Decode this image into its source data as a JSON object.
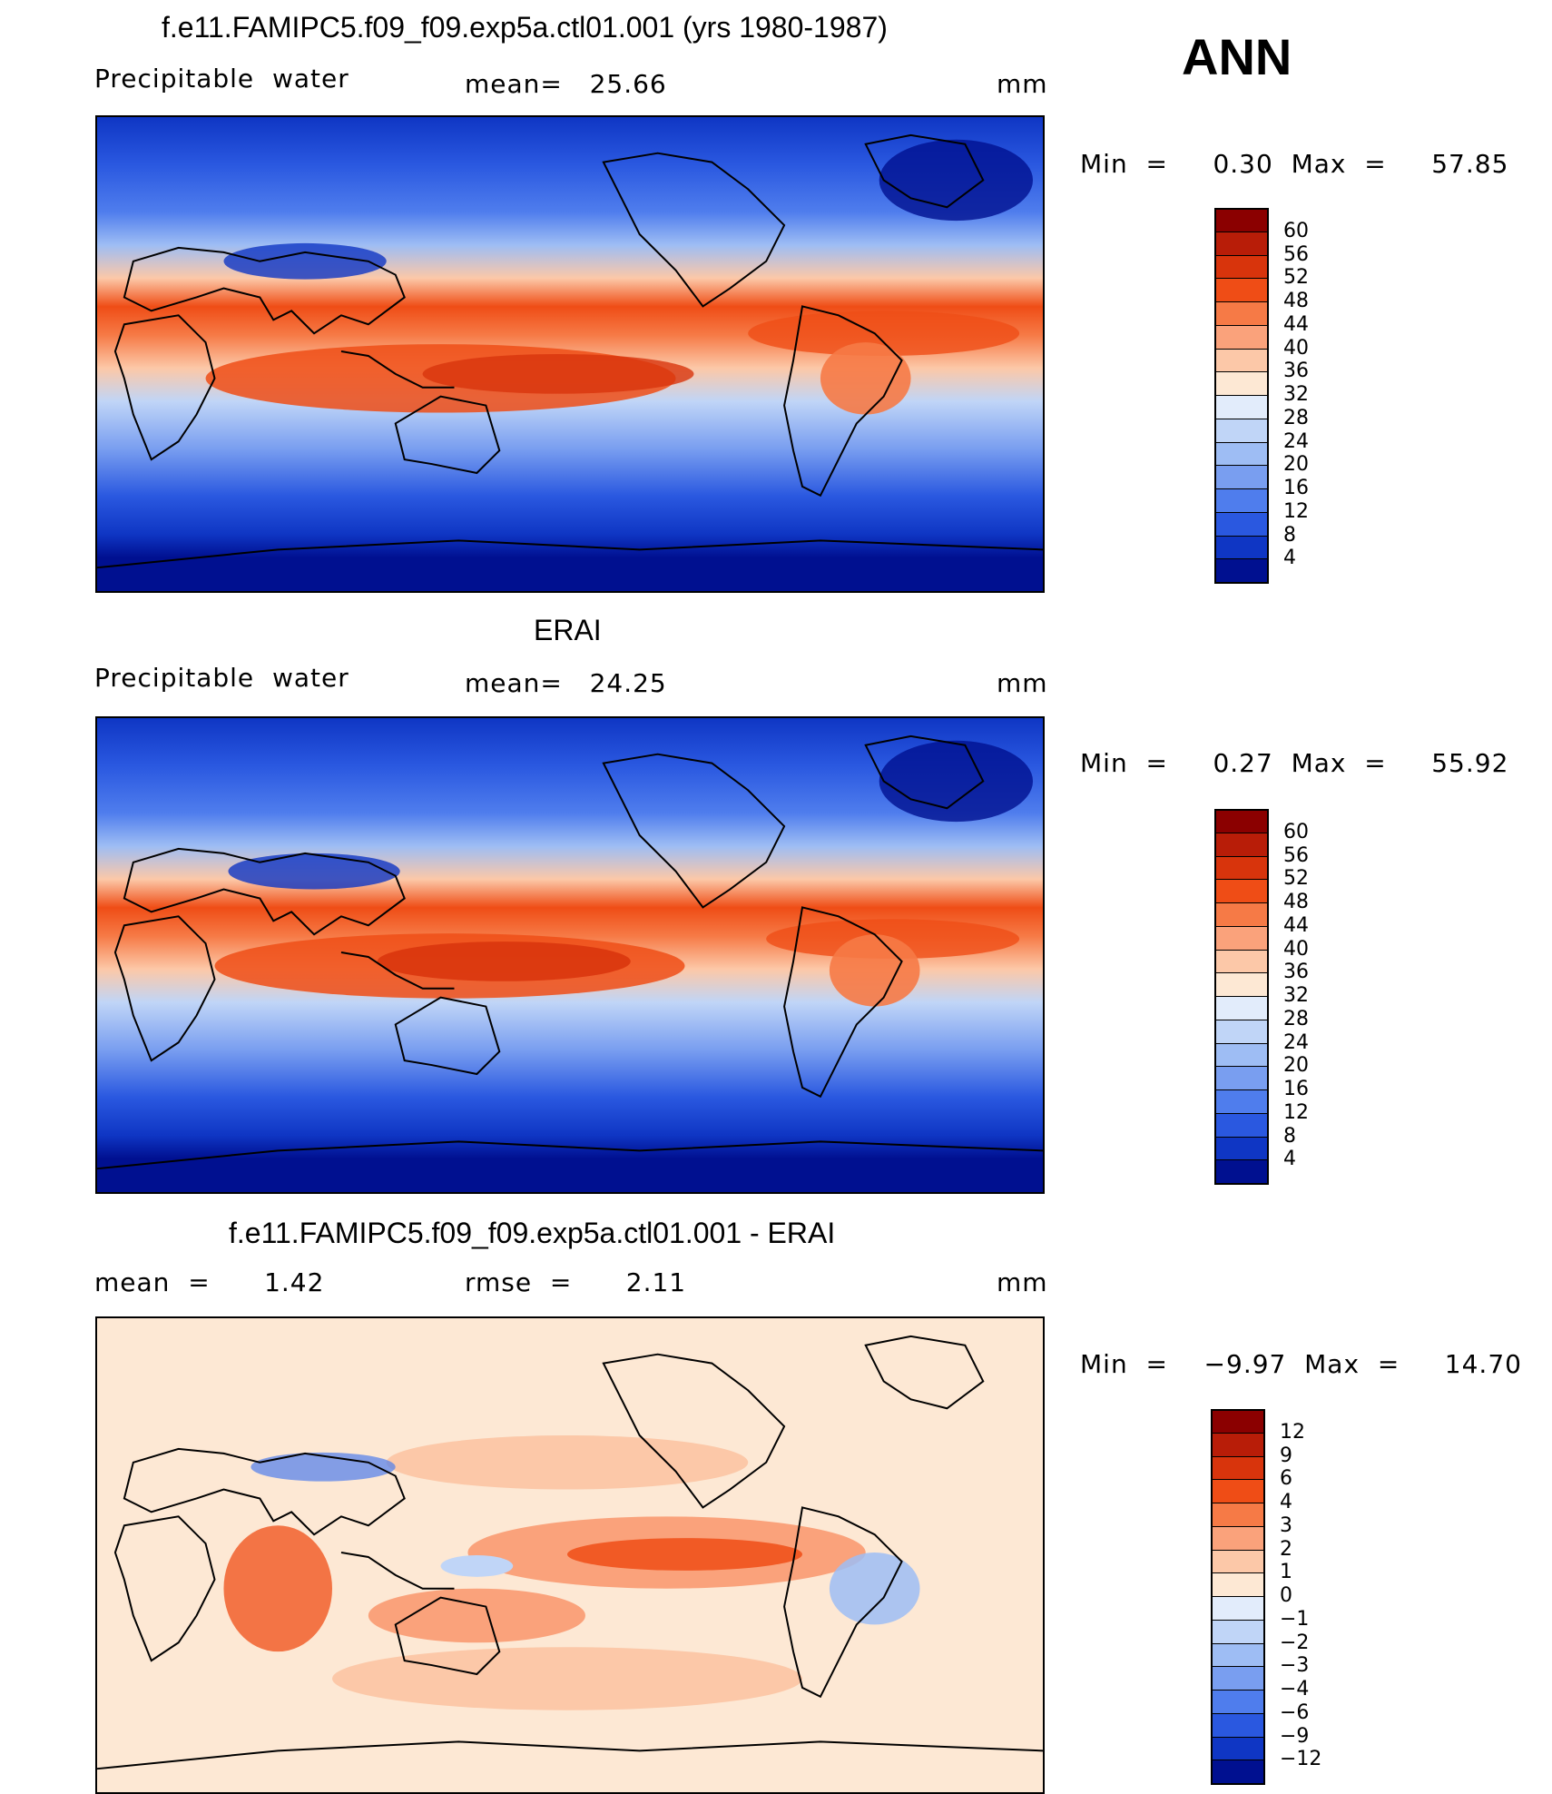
{
  "season": "ANN",
  "panels": [
    {
      "id": "model",
      "title": "f.e11.FAMIPC5.f09_f09.exp5a.ctl01.001 (yrs 1980-1987)",
      "left_label": "Precipitable  water",
      "mid_label": "mean=   25.66",
      "units": "mm",
      "minmax": "Min  =     0.30  Max  =     57.85",
      "scale": "abs"
    },
    {
      "id": "obs",
      "title": "ERAI",
      "left_label": "Precipitable  water",
      "mid_label": "mean=   24.25",
      "units": "mm",
      "minmax": "Min  =     0.27  Max  =     55.92",
      "scale": "abs"
    },
    {
      "id": "diff",
      "title": "f.e11.FAMIPC5.f09_f09.exp5a.ctl01.001 - ERAI",
      "left_label": "mean  =      1.42",
      "mid_label": "rmse  =      2.11",
      "units": "mm",
      "minmax": "Min  =    −9.97  Max  =     14.70",
      "scale": "diff"
    }
  ],
  "colorbars": {
    "abs": {
      "labels": [
        "60",
        "56",
        "52",
        "48",
        "44",
        "40",
        "36",
        "32",
        "28",
        "24",
        "20",
        "16",
        "12",
        "8",
        "4"
      ],
      "colors": [
        "#8b0000",
        "#b81d08",
        "#d8340c",
        "#ef4d16",
        "#f67a46",
        "#faa27b",
        "#fcc8a8",
        "#fde8d4",
        "#e2ecfb",
        "#c0d5f7",
        "#9ebdf4",
        "#799ef0",
        "#4f7ded",
        "#2a58e0",
        "#0f36c4",
        "#001090"
      ]
    },
    "diff": {
      "labels": [
        "12",
        "9",
        "6",
        "4",
        "3",
        "2",
        "1",
        "0",
        "−1",
        "−2",
        "−3",
        "−4",
        "−6",
        "−9",
        "−12"
      ],
      "colors": [
        "#8b0000",
        "#b81d08",
        "#d8340c",
        "#ef4d16",
        "#f67a46",
        "#faa27b",
        "#fcc8a8",
        "#fde8d4",
        "#e2ecfb",
        "#c0d5f7",
        "#9ebdf4",
        "#799ef0",
        "#4f7ded",
        "#2a58e0",
        "#0f36c4",
        "#001090"
      ]
    }
  }
}
